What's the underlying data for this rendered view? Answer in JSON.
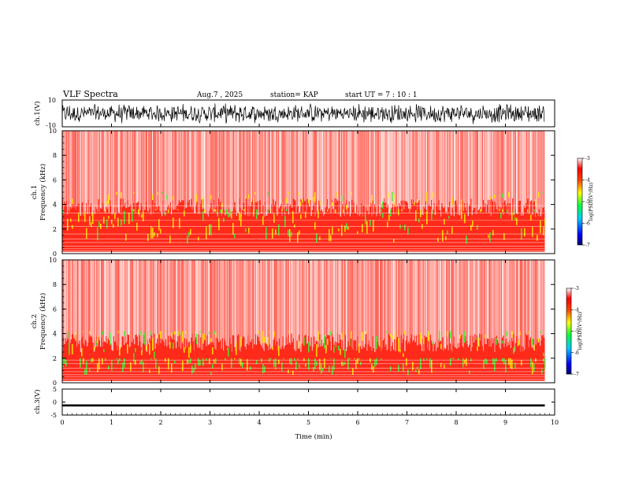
{
  "header": {
    "title": "VLF Spectra",
    "date": "Aug.7  , 2025",
    "station": "station= KAP",
    "start": "start  UT  =   7  : 10 : 1"
  },
  "colors": {
    "background": "#ffffff",
    "axis": "#000000",
    "low_band": "#ff0000",
    "noise": "#ff2020"
  },
  "chart_data": [
    {
      "id": "ch1-waveform",
      "type": "line",
      "ylabel": "ch.1(V)",
      "ylim": [
        -10,
        10
      ],
      "yticks": [
        10,
        -10
      ],
      "tick_labels": [
        "10",
        "-10"
      ],
      "description_values": "random-looking broadband waveform between about -8 and 8 V"
    },
    {
      "id": "ch1-spectrogram",
      "type": "heatmap",
      "ylabel": "ch.1\nFrequency  (kHz)",
      "ylim": [
        0,
        10
      ],
      "yticks": [
        0,
        2,
        4,
        6,
        8,
        10
      ],
      "tick_labels": [
        "0",
        "2",
        "4",
        "6",
        "8",
        "10"
      ],
      "colorbar": {
        "label": "log(PSD)(V²/Hz)",
        "ticks": [
          -3,
          -4,
          -5,
          -6,
          -7
        ],
        "tick_labels": [
          "-3",
          "-4",
          "-5",
          "-6",
          "-7"
        ]
      }
    },
    {
      "id": "ch2-spectrogram",
      "type": "heatmap",
      "ylabel": "ch.2\nFrequency  (kHz)",
      "ylim": [
        0,
        10
      ],
      "yticks": [
        0,
        2,
        4,
        6,
        8,
        10
      ],
      "tick_labels": [
        "0",
        "2",
        "4",
        "6",
        "8",
        "10"
      ],
      "colorbar": {
        "label": "log(PSD)(V²/Hz)",
        "ticks": [
          -3,
          -4,
          -5,
          -6,
          -7
        ],
        "tick_labels": [
          "-3",
          "-4",
          "-5",
          "-6",
          "-7"
        ]
      }
    },
    {
      "id": "ch3-waveform",
      "type": "line",
      "ylabel": "ch.3(V)",
      "ylim": [
        -5,
        5
      ],
      "yticks": [
        5,
        0,
        -5
      ],
      "tick_labels": [
        "5",
        "0",
        "-5"
      ],
      "level": -1.3
    }
  ],
  "xaxis": {
    "label": "Time  (min)",
    "xlim": [
      0,
      10
    ],
    "ticks": [
      0,
      1,
      2,
      3,
      4,
      5,
      6,
      7,
      8,
      9,
      10
    ],
    "tick_labels": [
      "0",
      "1",
      "2",
      "3",
      "4",
      "5",
      "6",
      "7",
      "8",
      "9",
      "10"
    ],
    "data_end": 9.8
  }
}
